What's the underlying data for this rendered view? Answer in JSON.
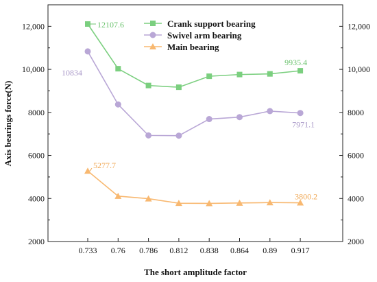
{
  "chart_data": {
    "type": "line",
    "title": "",
    "xlabel": "The short amplitude factor",
    "ylabel": "Axis bearings force(N)",
    "categories": [
      "0.733",
      "0.76",
      "0.786",
      "0.812",
      "0.838",
      "0.864",
      "0.89",
      "0.917"
    ],
    "ylim": [
      2000,
      13000
    ],
    "yticks": [
      2000,
      4000,
      6000,
      8000,
      10000,
      12000
    ],
    "ytick_labels": [
      "2000",
      "4000",
      "6000",
      "8000",
      "10,000",
      "12,000"
    ],
    "secondary_y_axis": true,
    "legend_position": "top-center",
    "grid": false,
    "series": [
      {
        "name": "Crank support bearing",
        "color": "#7bcf7f",
        "marker": "square",
        "values": [
          12107.6,
          10030,
          9250,
          9170,
          9680,
          9760,
          9790,
          9935.4
        ]
      },
      {
        "name": "Swivel arm bearing",
        "color": "#b9a7d6",
        "marker": "circle",
        "values": [
          10834,
          8370,
          6930,
          6920,
          7690,
          7780,
          8060,
          7971.1
        ]
      },
      {
        "name": "Main bearing",
        "color": "#f8b870",
        "marker": "triangle",
        "values": [
          5277.7,
          4110,
          3990,
          3780,
          3770,
          3790,
          3810,
          3800.2
        ]
      }
    ],
    "annotations": [
      {
        "text": "12107.6",
        "series": 0,
        "index": 0,
        "color": "#6cc36f"
      },
      {
        "text": "9935.4",
        "series": 0,
        "index": 7,
        "color": "#6cc36f"
      },
      {
        "text": "10834",
        "series": 1,
        "index": 0,
        "color": "#a998c8"
      },
      {
        "text": "7971.1",
        "series": 1,
        "index": 7,
        "color": "#a998c8"
      },
      {
        "text": "5277.7",
        "series": 2,
        "index": 0,
        "color": "#f0a855"
      },
      {
        "text": "3800.2",
        "series": 2,
        "index": 7,
        "color": "#f0a855"
      }
    ]
  }
}
